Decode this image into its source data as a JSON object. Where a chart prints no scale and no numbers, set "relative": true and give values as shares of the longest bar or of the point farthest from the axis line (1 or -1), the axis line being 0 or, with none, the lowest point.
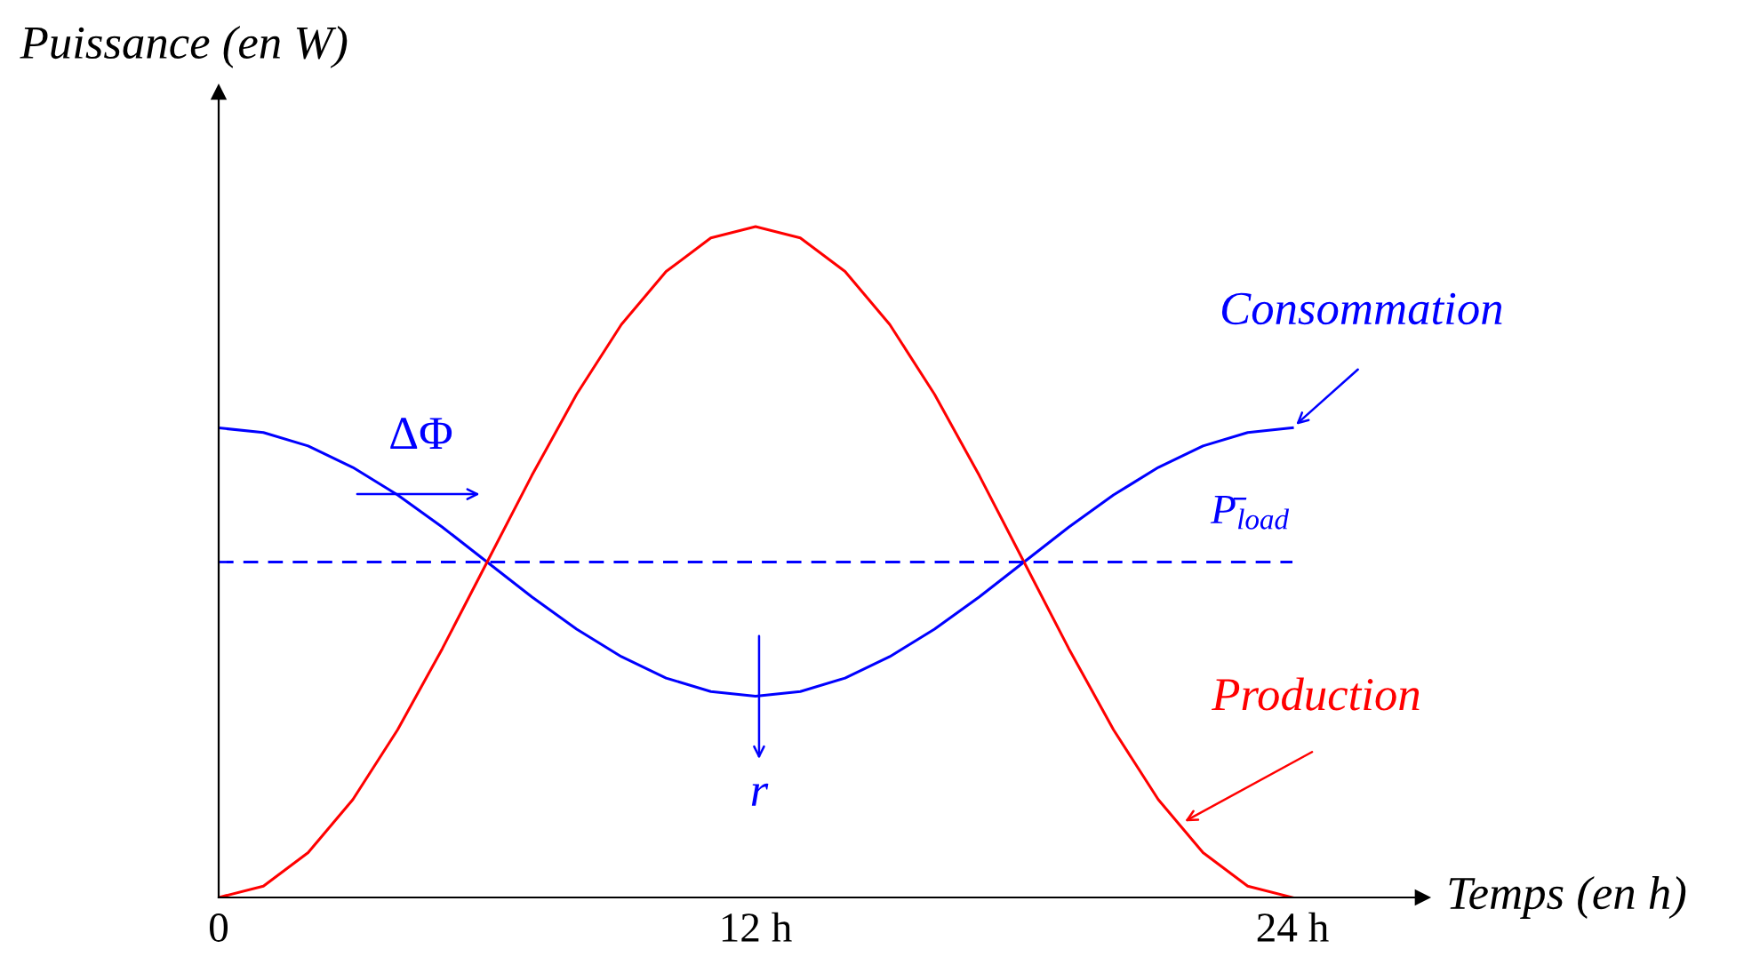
{
  "chart_data": {
    "type": "line",
    "relative": true,
    "xlabel": "Temps (en h)",
    "ylabel": "Puissance (en W)",
    "x": [
      0,
      1,
      2,
      3,
      4,
      5,
      6,
      7,
      8,
      9,
      10,
      11,
      12,
      13,
      14,
      15,
      16,
      17,
      18,
      19,
      20,
      21,
      22,
      23,
      24
    ],
    "xlim": [
      0,
      26.9
    ],
    "xticks": [
      0,
      {
        "value": 12,
        "label": "12 h"
      },
      {
        "value": 24,
        "label": "24 h"
      }
    ],
    "tick_labels": "x",
    "grid": false,
    "legend": false,
    "marker": "none",
    "line_style": "solid",
    "series": [
      {
        "color": "#0000ff",
        "values": [
          0.7,
          0.693,
          0.673,
          0.641,
          0.6,
          0.552,
          0.5,
          0.448,
          0.4,
          0.359,
          0.327,
          0.307,
          0.3,
          0.307,
          0.327,
          0.359,
          0.4,
          0.448,
          0.5,
          0.552,
          0.6,
          0.641,
          0.673,
          0.693,
          0.7
        ]
      },
      {
        "color": "#ff0000",
        "values": [
          0,
          0.017,
          0.067,
          0.146,
          0.25,
          0.371,
          0.5,
          0.629,
          0.75,
          0.854,
          0.933,
          0.983,
          1,
          0.983,
          0.933,
          0.854,
          0.75,
          0.629,
          0.5,
          0.371,
          0.25,
          0.146,
          0.067,
          0.017,
          0
        ]
      }
    ],
    "ref_lines": [
      {
        "axis": "y",
        "value": 0.5,
        "label": "P̄$_{load}$",
        "color": "#0000ff",
        "line_style": "dashed"
      }
    ],
    "annotations": [
      {
        "text": "Consommation",
        "x": 24,
        "y": 0.7
      },
      {
        "text": "Production",
        "x": 21.5,
        "y": 0.11
      },
      "ΔΦ",
      "r"
    ]
  }
}
